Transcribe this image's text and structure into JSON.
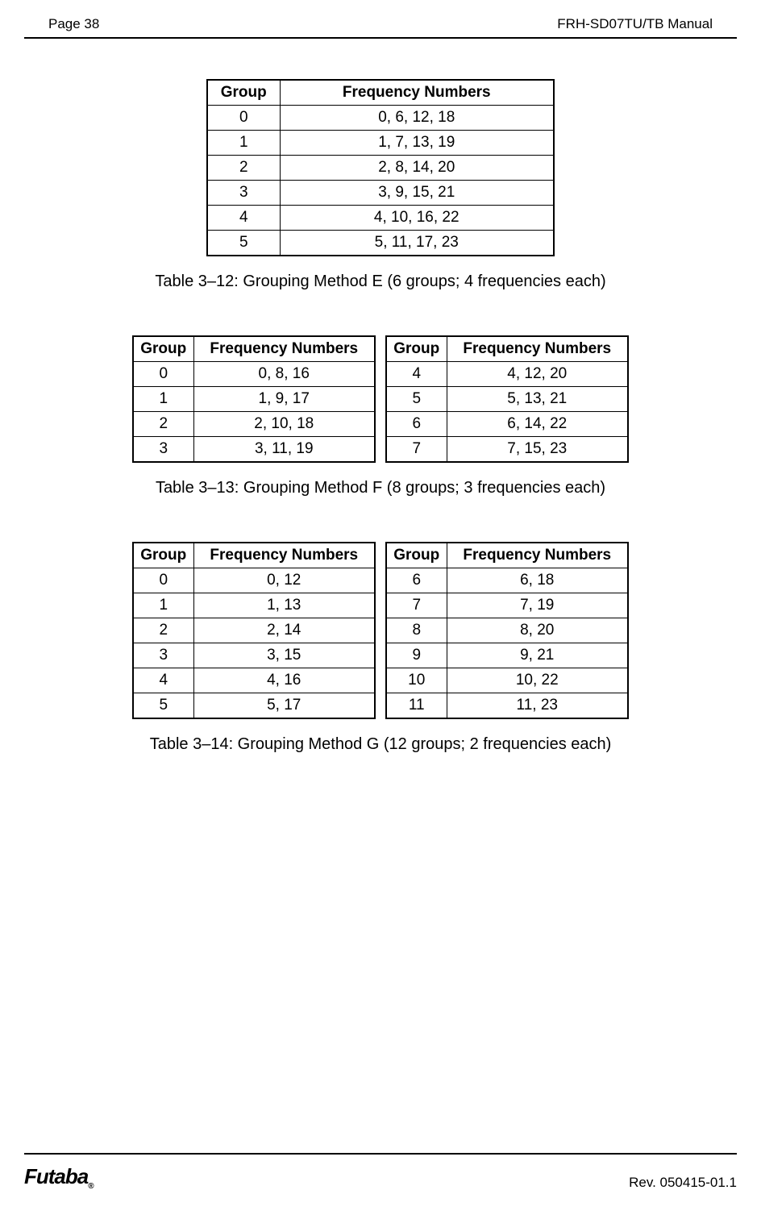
{
  "header": {
    "page": "Page  38",
    "manual": "FRH-SD07TU/TB Manual"
  },
  "table1": {
    "headers": [
      "Group",
      "Frequency Numbers"
    ],
    "rows": [
      [
        "0",
        "0,  6,  12,  18"
      ],
      [
        "1",
        "1,  7,  13,  19"
      ],
      [
        "2",
        "2,  8,  14,  20"
      ],
      [
        "3",
        "3,  9,  15,  21"
      ],
      [
        "4",
        "4,  10,  16,  22"
      ],
      [
        "5",
        "5,  11,  17,  23"
      ]
    ],
    "caption": "Table 3–12:  Grouping Method E  (6 groups; 4 frequencies each)"
  },
  "table2": {
    "headers": [
      "Group",
      "Frequency Numbers"
    ],
    "left_rows": [
      [
        "0",
        "0,  8,  16"
      ],
      [
        "1",
        "1,  9,  17"
      ],
      [
        "2",
        "2, 10, 18"
      ],
      [
        "3",
        "3, 11, 19"
      ]
    ],
    "right_rows": [
      [
        "4",
        "4,  12,  20"
      ],
      [
        "5",
        "5,  13,  21"
      ],
      [
        "6",
        "6,  14,  22"
      ],
      [
        "7",
        "7,  15,  23"
      ]
    ],
    "caption": "Table 3–13:  Grouping Method F  (8 groups; 3 frequencies each)"
  },
  "table3": {
    "headers": [
      "Group",
      "Frequency Numbers"
    ],
    "left_rows": [
      [
        "0",
        "0,  12"
      ],
      [
        "1",
        "1,  13"
      ],
      [
        "2",
        "2,  14"
      ],
      [
        "3",
        "3,  15"
      ],
      [
        "4",
        "4,  16"
      ],
      [
        "5",
        "5,  17"
      ]
    ],
    "right_rows": [
      [
        "6",
        "6,  18"
      ],
      [
        "7",
        "7,  19"
      ],
      [
        "8",
        "8,  20"
      ],
      [
        "9",
        "9,  21"
      ],
      [
        "10",
        "10,  22"
      ],
      [
        "11",
        "11,  23"
      ]
    ],
    "caption": "Table 3–14:  Grouping Method G  (12 groups; 2 frequencies each)"
  },
  "footer": {
    "logo": "Futaba",
    "revision": "Rev. 050415-01.1"
  }
}
